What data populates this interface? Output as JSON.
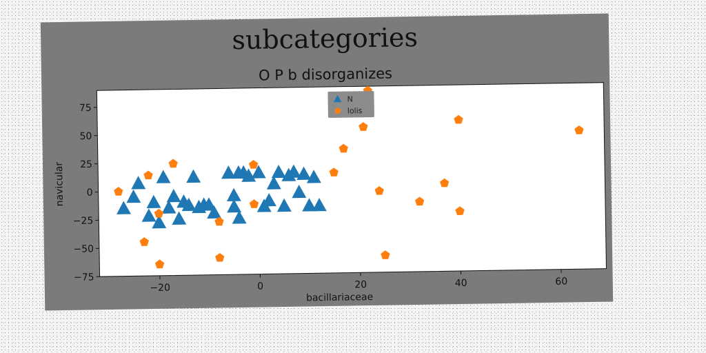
{
  "chart_data": {
    "type": "scatter",
    "title": "subcategories",
    "subtitle": "O P b disorganizes",
    "xlabel": "bacillariaceae",
    "ylabel": "navicular",
    "xlim": [
      -32,
      69
    ],
    "ylim": [
      -75,
      90
    ],
    "xticks": [
      -20,
      0,
      20,
      40,
      60
    ],
    "yticks": [
      -75,
      -50,
      -25,
      0,
      25,
      50,
      75
    ],
    "xtick_labels": [
      "−20",
      "0",
      "20",
      "40",
      "60"
    ],
    "ytick_labels": [
      "−75",
      "−50",
      "−25",
      "0",
      "25",
      "50",
      "75"
    ],
    "grid": false,
    "legend_position": "top-center",
    "series": [
      {
        "name": "N",
        "marker": "triangle",
        "color": "#1f77b4",
        "x": [
          -27,
          -25,
          -24,
          -22,
          -21,
          -20,
          -19,
          -18,
          -17,
          -16,
          -15,
          -14,
          -13,
          -12,
          -11,
          -10,
          -9,
          -6,
          -5,
          -5,
          -4,
          -4,
          -3,
          -2,
          0,
          1,
          2,
          3,
          4,
          5,
          6,
          7,
          8,
          9,
          10,
          11,
          12
        ],
        "y": [
          -15,
          -5,
          7,
          -22,
          -10,
          -28,
          12,
          -15,
          -5,
          -25,
          -10,
          -13,
          12,
          -15,
          -13,
          -13,
          -20,
          15,
          -5,
          -15,
          -25,
          15,
          15,
          12,
          15,
          -15,
          -10,
          5,
          15,
          -15,
          12,
          15,
          -3,
          13,
          -15,
          10,
          -15
        ]
      },
      {
        "name": "lolis",
        "marker": "pentagon",
        "color": "#ff7f0e",
        "x": [
          -28,
          -23,
          -22,
          -20,
          -20,
          -17,
          -8,
          -8,
          -1,
          -1,
          15,
          17,
          21,
          22,
          24,
          25,
          32,
          37,
          40,
          40,
          64
        ],
        "y": [
          0,
          -45,
          14,
          -20,
          -65,
          24,
          -28,
          -60,
          22,
          -13,
          14,
          35,
          54,
          86,
          -3,
          -60,
          -13,
          3,
          59,
          -22,
          48
        ]
      }
    ]
  }
}
